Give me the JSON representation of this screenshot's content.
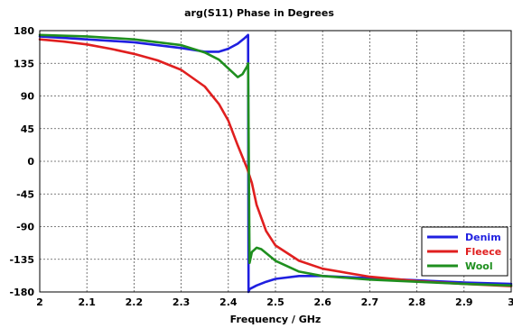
{
  "chart_data": {
    "type": "line",
    "title": "arg(S11) Phase in Degrees",
    "xlabel": "Frequency / GHz",
    "ylabel": "",
    "xlim": [
      2,
      3
    ],
    "ylim": [
      -180,
      180
    ],
    "x_ticks": [
      2,
      2.1,
      2.2,
      2.3,
      2.4,
      2.5,
      2.6,
      2.7,
      2.8,
      2.9,
      3
    ],
    "x_tick_labels": [
      "2",
      "2.1",
      "2.2",
      "2.3",
      "2.4",
      "2.5",
      "2.6",
      "2.7",
      "2.8",
      "2.9",
      "3"
    ],
    "y_ticks": [
      180,
      135,
      90,
      45,
      0,
      -45,
      -90,
      -135,
      -180
    ],
    "y_tick_labels": [
      "180",
      "135",
      "90",
      "45",
      "0",
      "-45",
      "-90",
      "-135",
      "-180"
    ],
    "grid": true,
    "legend_position": "bottom-right",
    "series": [
      {
        "name": "Denim",
        "color": "#1f1fe0",
        "x": [
          2.0,
          2.1,
          2.2,
          2.3,
          2.35,
          2.38,
          2.4,
          2.42,
          2.435,
          2.442,
          2.443,
          2.445,
          2.46,
          2.48,
          2.5,
          2.55,
          2.6,
          2.7,
          2.8,
          2.9,
          3.0
        ],
        "y": [
          172,
          168,
          164,
          156,
          151,
          151,
          155,
          162,
          170,
          174,
          -180,
          -176,
          -171,
          -166,
          -162,
          -158,
          -158,
          -161,
          -164,
          -167,
          -169
        ]
      },
      {
        "name": "Fleece",
        "color": "#e01f1f",
        "x": [
          2.0,
          2.05,
          2.1,
          2.15,
          2.2,
          2.25,
          2.3,
          2.35,
          2.38,
          2.4,
          2.42,
          2.44,
          2.45,
          2.46,
          2.48,
          2.5,
          2.55,
          2.6,
          2.7,
          2.8,
          2.9,
          3.0
        ],
        "y": [
          168,
          165,
          161,
          155,
          148,
          139,
          126,
          103,
          79,
          56,
          22,
          -10,
          -30,
          -60,
          -96,
          -116,
          -137,
          -148,
          -159,
          -165,
          -169,
          -172
        ]
      },
      {
        "name": "Wool",
        "color": "#1f8f1f",
        "x": [
          2.0,
          2.1,
          2.2,
          2.3,
          2.35,
          2.38,
          2.4,
          2.42,
          2.43,
          2.44,
          2.442,
          2.445,
          2.45,
          2.46,
          2.47,
          2.5,
          2.55,
          2.6,
          2.7,
          2.8,
          2.9,
          3.0
        ],
        "y": [
          174,
          172,
          168,
          160,
          150,
          140,
          128,
          116,
          120,
          131,
          135,
          -140,
          -125,
          -119,
          -121,
          -137,
          -152,
          -158,
          -163,
          -166,
          -169,
          -171
        ]
      }
    ]
  }
}
